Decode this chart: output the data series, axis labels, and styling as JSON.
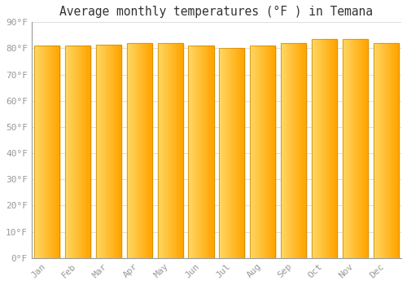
{
  "title": "Average monthly temperatures (°F ) in Temana",
  "months": [
    "Jan",
    "Feb",
    "Mar",
    "Apr",
    "May",
    "Jun",
    "Jul",
    "Aug",
    "Sep",
    "Oct",
    "Nov",
    "Dec"
  ],
  "values": [
    81,
    81,
    81.5,
    82,
    82,
    81,
    80,
    81,
    82,
    83.5,
    83.5,
    82
  ],
  "bar_color_left": "#FFD966",
  "bar_color_right": "#FFA500",
  "bar_edge_color": "#CC8800",
  "background_color": "#FFFFFF",
  "grid_color": "#DDDDDD",
  "tick_color": "#999999",
  "title_color": "#333333",
  "ylim": [
    0,
    90
  ],
  "yticks": [
    0,
    10,
    20,
    30,
    40,
    50,
    60,
    70,
    80,
    90
  ],
  "ytick_labels": [
    "0°F",
    "10°F",
    "20°F",
    "30°F",
    "40°F",
    "50°F",
    "60°F",
    "70°F",
    "80°F",
    "90°F"
  ],
  "title_fontsize": 10.5,
  "tick_fontsize": 8,
  "bar_width": 0.82
}
